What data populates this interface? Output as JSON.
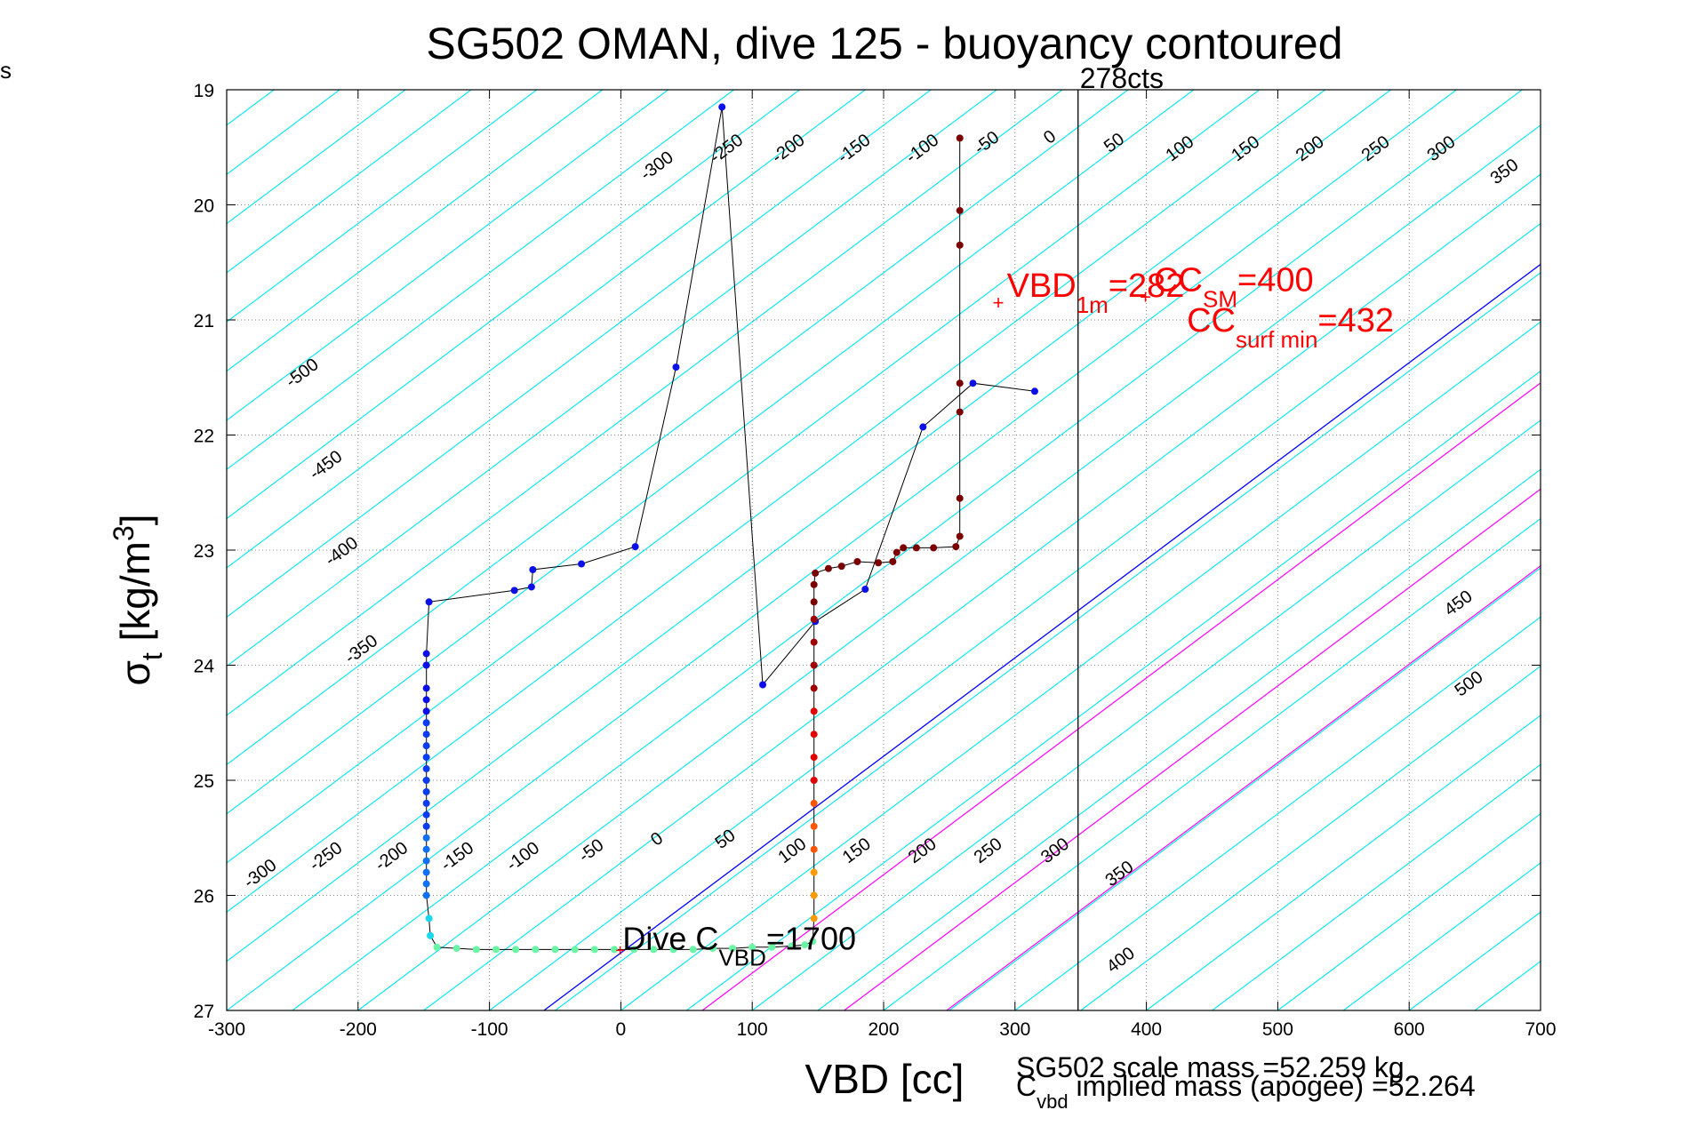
{
  "page": {
    "corner_text": "s"
  },
  "chart_data": {
    "type": "scatter",
    "title": "SG502 OMAN, dive 125 - buoyancy contoured",
    "xlabel": "VBD [cc]",
    "ylabel_main": "σ",
    "ylabel_sub": "t",
    "ylabel_rest": " [kg/m",
    "ylabel_sup": "3",
    "ylabel_end": "]",
    "xlim": [
      -300,
      700
    ],
    "ylim": [
      19,
      27
    ],
    "y_reversed": true,
    "grid": true,
    "xticks": [
      -300,
      -200,
      -100,
      0,
      100,
      200,
      300,
      400,
      500,
      600,
      700
    ],
    "yticks": [
      19,
      20,
      21,
      22,
      23,
      24,
      25,
      26,
      27
    ],
    "colors": {
      "contour": "#00e5ee",
      "blue_line": "#0000ff",
      "magenta_line": "#ff00ff",
      "annotation_red": "#ff0000",
      "path": "#000000",
      "grid": "#888888",
      "vertical_line": "#000000"
    },
    "contour_slope_cc_per_sigma": 117,
    "contour_labels_top": [
      {
        "label": "-500",
        "x": -240,
        "y": 21.5
      },
      {
        "label": "-450",
        "x": -222,
        "y": 22.3
      },
      {
        "label": "-400",
        "x": -210,
        "y": 23.05
      },
      {
        "label": "-350",
        "x": -195,
        "y": 23.9
      },
      {
        "label": "-300",
        "x": 30,
        "y": 19.7
      },
      {
        "label": "-250",
        "x": 83,
        "y": 19.55
      },
      {
        "label": "-200",
        "x": 130,
        "y": 19.55
      },
      {
        "label": "-150",
        "x": 180,
        "y": 19.55
      },
      {
        "label": "-100",
        "x": 232,
        "y": 19.55
      },
      {
        "label": "-50",
        "x": 281,
        "y": 19.5
      },
      {
        "label": "0",
        "x": 329,
        "y": 19.45
      },
      {
        "label": "50",
        "x": 378,
        "y": 19.5
      },
      {
        "label": "100",
        "x": 428,
        "y": 19.55
      },
      {
        "label": "150",
        "x": 478,
        "y": 19.55
      },
      {
        "label": "200",
        "x": 527,
        "y": 19.55
      },
      {
        "label": "250",
        "x": 577,
        "y": 19.55
      },
      {
        "label": "300",
        "x": 627,
        "y": 19.55
      },
      {
        "label": "350",
        "x": 675,
        "y": 19.75
      },
      {
        "label": "450",
        "x": 640,
        "y": 23.5
      },
      {
        "label": "500",
        "x": 648,
        "y": 24.2
      }
    ],
    "contour_labels_bottom": [
      {
        "label": "-300",
        "x": -272,
        "y": 25.85
      },
      {
        "label": "-250",
        "x": -222,
        "y": 25.7
      },
      {
        "label": "-200",
        "x": -172,
        "y": 25.7
      },
      {
        "label": "-150",
        "x": -122,
        "y": 25.7
      },
      {
        "label": "-100",
        "x": -72,
        "y": 25.7
      },
      {
        "label": "-50",
        "x": -20,
        "y": 25.65
      },
      {
        "label": "0",
        "x": 30,
        "y": 25.55
      },
      {
        "label": "50",
        "x": 82,
        "y": 25.55
      },
      {
        "label": "100",
        "x": 133,
        "y": 25.65
      },
      {
        "label": "150",
        "x": 182,
        "y": 25.65
      },
      {
        "label": "200",
        "x": 232,
        "y": 25.65
      },
      {
        "label": "250",
        "x": 282,
        "y": 25.65
      },
      {
        "label": "300",
        "x": 333,
        "y": 25.65
      },
      {
        "label": "350",
        "x": 382,
        "y": 25.85
      },
      {
        "label": "400",
        "x": 383,
        "y": 26.6
      }
    ],
    "blue_line": {
      "x0": 0,
      "y0": 26.5,
      "slope_cc_per_sigma": 117
    },
    "magenta_lines": [
      {
        "x0": 62,
        "y0": 27
      },
      {
        "x0": 170,
        "y0": 27
      },
      {
        "x0": 248,
        "y0": 27
      }
    ],
    "vertical_line": {
      "x": 348,
      "label": "278cts"
    },
    "descent_points": [
      [
        315,
        21.62
      ],
      [
        268,
        21.55
      ],
      [
        230,
        21.93
      ],
      [
        186,
        23.34
      ],
      [
        148,
        23.62
      ],
      [
        108,
        24.17
      ],
      [
        77,
        19.15
      ],
      [
        42,
        21.41
      ],
      [
        11,
        22.97
      ],
      [
        -30,
        23.12
      ],
      [
        -67,
        23.17
      ],
      [
        -68,
        23.32
      ],
      [
        -81,
        23.35
      ],
      [
        -146,
        23.45
      ],
      [
        -148,
        23.9
      ],
      [
        -148,
        24.0
      ],
      [
        -148,
        24.2
      ],
      [
        -148,
        24.3
      ],
      [
        -148,
        24.4
      ],
      [
        -148,
        24.5
      ],
      [
        -148,
        24.6
      ],
      [
        -148,
        24.7
      ],
      [
        -148,
        24.8
      ],
      [
        -148,
        24.9
      ],
      [
        -148,
        25.0
      ],
      [
        -148,
        25.1
      ],
      [
        -148,
        25.2
      ],
      [
        -148,
        25.3
      ],
      [
        -148,
        25.4
      ],
      [
        -148,
        25.5
      ],
      [
        -148,
        25.6
      ],
      [
        -148,
        25.7
      ],
      [
        -148,
        25.8
      ],
      [
        -148,
        25.9
      ],
      [
        -148,
        26.0
      ],
      [
        -146,
        26.2
      ],
      [
        -145,
        26.35
      ],
      [
        -140,
        26.45
      ],
      [
        -125,
        26.46
      ],
      [
        -110,
        26.47
      ],
      [
        -95,
        26.47
      ],
      [
        -80,
        26.47
      ],
      [
        -65,
        26.47
      ],
      [
        -50,
        26.47
      ],
      [
        -35,
        26.47
      ],
      [
        -20,
        26.47
      ],
      [
        -5,
        26.47
      ],
      [
        10,
        26.47
      ],
      [
        25,
        26.47
      ],
      [
        40,
        26.47
      ],
      [
        55,
        26.47
      ],
      [
        70,
        26.46
      ],
      [
        85,
        26.46
      ],
      [
        100,
        26.45
      ],
      [
        115,
        26.45
      ],
      [
        130,
        26.44
      ],
      [
        140,
        26.43
      ],
      [
        146,
        26.4
      ]
    ],
    "ascent_points": [
      [
        147,
        26.2
      ],
      [
        147,
        26.0
      ],
      [
        147,
        25.8
      ],
      [
        147,
        25.6
      ],
      [
        147,
        25.4
      ],
      [
        147,
        25.2
      ],
      [
        147,
        25.0
      ],
      [
        147,
        24.8
      ],
      [
        147,
        24.6
      ],
      [
        147,
        24.4
      ],
      [
        147,
        24.2
      ],
      [
        147,
        24.0
      ],
      [
        147,
        23.8
      ],
      [
        147,
        23.6
      ],
      [
        147,
        23.45
      ],
      [
        147,
        23.3
      ],
      [
        148,
        23.2
      ],
      [
        158,
        23.16
      ],
      [
        168,
        23.14
      ],
      [
        180,
        23.1
      ],
      [
        196,
        23.11
      ],
      [
        207,
        23.1
      ],
      [
        210,
        23.02
      ],
      [
        215,
        22.98
      ],
      [
        225,
        22.98
      ],
      [
        238,
        22.98
      ],
      [
        255,
        22.97
      ],
      [
        258,
        22.88
      ],
      [
        258,
        22.55
      ],
      [
        258,
        21.8
      ],
      [
        258,
        21.55
      ],
      [
        258,
        20.35
      ],
      [
        258,
        20.05
      ],
      [
        258,
        19.42
      ]
    ],
    "annotations": [
      {
        "text": "VBD",
        "sub": "1m",
        "rest": "=282",
        "x": 287,
        "y": 20.8,
        "marker": true
      },
      {
        "text": "CC",
        "sub": "SM",
        "rest": "=400",
        "x": 399,
        "y": 20.75,
        "marker": true
      },
      {
        "text": "CC",
        "sub": "surf min",
        "rest": "=432",
        "x": 424,
        "y": 21.1,
        "marker": false
      }
    ],
    "dive_annotation": {
      "text": "Dive C",
      "sub": "VBD",
      "rest": "=1700",
      "x": 0,
      "y": 26.38
    },
    "footer": {
      "line1": "SG502 scale mass =52.259 kg",
      "line2_main": "C",
      "line2_sub": "vbd",
      "line2_rest": " implied mass (apogee) =52.264"
    }
  }
}
